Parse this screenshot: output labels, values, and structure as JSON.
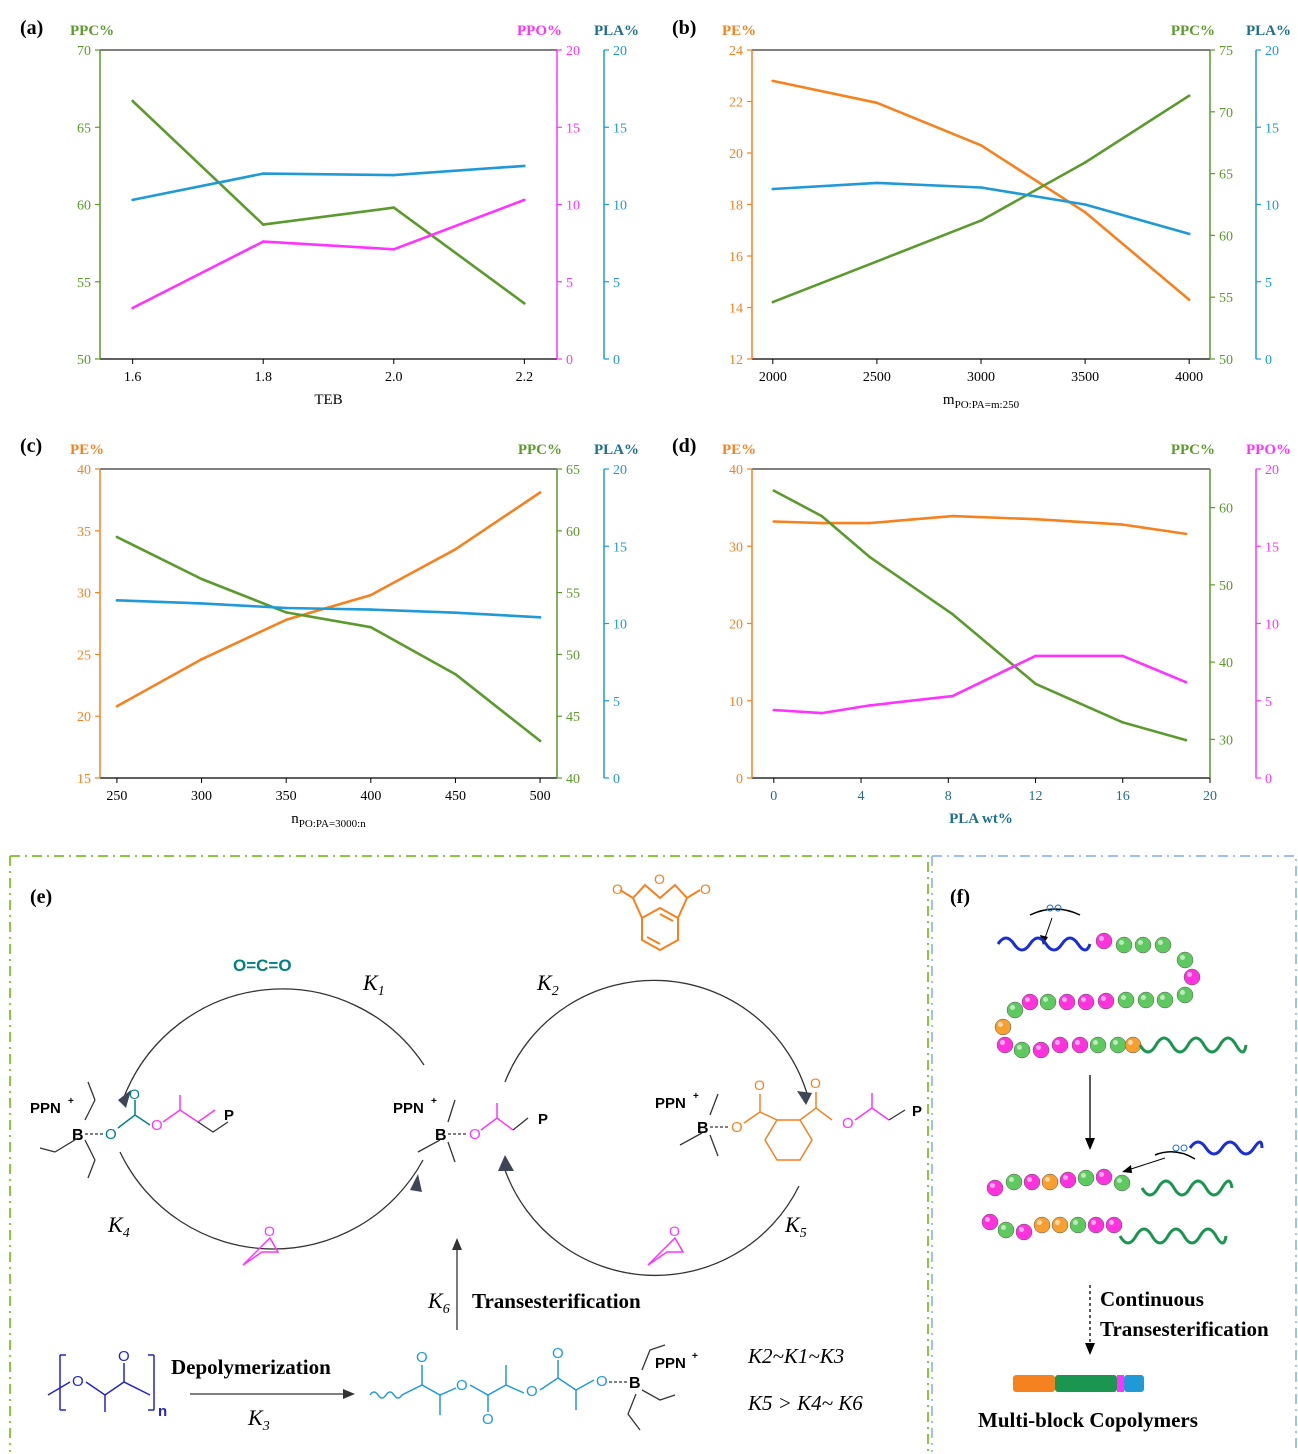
{
  "colors": {
    "ppc": "#5b9a2c",
    "ppo": "#ff33ff",
    "pla": "#1f9ad6",
    "pe": "#f5821f",
    "pla_label": "#1f6f8b",
    "co2": "#008080",
    "dashed_green": "#8dc63f",
    "dashed_blue": "#9dc3e6"
  },
  "chart_data": [
    {
      "id": "a",
      "panel_label": "(a)",
      "type": "line",
      "xlabel": "TEB",
      "x": [
        1.6,
        1.8,
        2.0,
        2.2
      ],
      "xlim": [
        1.55,
        2.25
      ],
      "xticks": [
        1.6,
        1.8,
        2.0,
        2.2
      ],
      "xticklabels": [
        "1.6",
        "1.8",
        "2.0",
        "2.2"
      ],
      "axes": [
        {
          "key": "ppc",
          "label": "PPC%",
          "side": "left",
          "lim": [
            50,
            70
          ],
          "ticks": [
            50,
            55,
            60,
            65,
            70
          ],
          "color": "#5b9a2c"
        },
        {
          "key": "ppo",
          "label": "PPO%",
          "side": "right1",
          "lim": [
            0,
            20
          ],
          "ticks": [
            0,
            5,
            10,
            15,
            20
          ],
          "color": "#ff33ff"
        },
        {
          "key": "pla",
          "label": "PLA%",
          "side": "right2",
          "lim": [
            0,
            20
          ],
          "ticks": [
            0,
            5,
            10,
            15,
            20
          ],
          "color": "#1f9ad6"
        }
      ],
      "series": [
        {
          "axis": "ppc",
          "values": [
            66.7,
            58.7,
            59.8,
            53.6
          ],
          "color": "#5b9a2c"
        },
        {
          "axis": "ppo",
          "values": [
            3.3,
            7.6,
            7.1,
            10.3
          ],
          "color": "#ff33ff"
        },
        {
          "axis": "pla",
          "values": [
            10.3,
            12.0,
            11.9,
            12.5
          ],
          "color": "#1f9ad6"
        }
      ]
    },
    {
      "id": "b",
      "panel_label": "(b)",
      "type": "line",
      "xlabel": "m",
      "xlabel_sub": "PO:PA=m:250",
      "x": [
        2000,
        2500,
        3000,
        3500,
        4000
      ],
      "xlim": [
        1900,
        4100
      ],
      "xticks": [
        2000,
        2500,
        3000,
        3500,
        4000
      ],
      "xticklabels": [
        "2000",
        "2500",
        "3000",
        "3500",
        "4000"
      ],
      "axes": [
        {
          "key": "pe",
          "label": "PE%",
          "side": "left",
          "lim": [
            12,
            24
          ],
          "ticks": [
            12,
            14,
            16,
            18,
            20,
            22,
            24
          ],
          "color": "#f5821f"
        },
        {
          "key": "ppc",
          "label": "PPC%",
          "side": "right1",
          "lim": [
            50,
            75
          ],
          "ticks": [
            50,
            55,
            60,
            65,
            70,
            75
          ],
          "color": "#5b9a2c"
        },
        {
          "key": "pla",
          "label": "PLA%",
          "side": "right2",
          "lim": [
            0,
            20
          ],
          "ticks": [
            0,
            5,
            10,
            15,
            20
          ],
          "color": "#1f9ad6"
        }
      ],
      "series": [
        {
          "axis": "pe",
          "values": [
            22.8,
            21.95,
            20.3,
            17.7,
            14.3
          ],
          "color": "#f5821f"
        },
        {
          "axis": "ppc",
          "values": [
            54.6,
            57.9,
            61.2,
            65.9,
            71.3
          ],
          "color": "#5b9a2c"
        },
        {
          "axis": "pla",
          "values": [
            11.0,
            11.4,
            11.1,
            10.0,
            8.1
          ],
          "color": "#1f9ad6"
        }
      ]
    },
    {
      "id": "c",
      "panel_label": "(c)",
      "type": "line",
      "xlabel": "n",
      "xlabel_sub": "PO:PA=3000:n",
      "x": [
        250,
        300,
        350,
        400,
        450,
        500
      ],
      "xlim": [
        240,
        510
      ],
      "xticks": [
        250,
        300,
        350,
        400,
        450,
        500
      ],
      "xticklabels": [
        "250",
        "300",
        "350",
        "400",
        "450",
        "500"
      ],
      "axes": [
        {
          "key": "pe",
          "label": "PE%",
          "side": "left",
          "lim": [
            15,
            40
          ],
          "ticks": [
            15,
            20,
            25,
            30,
            35,
            40
          ],
          "color": "#f5821f"
        },
        {
          "key": "ppc",
          "label": "PPC%",
          "side": "right1",
          "lim": [
            40,
            65
          ],
          "ticks": [
            40,
            45,
            50,
            55,
            60,
            65
          ],
          "color": "#5b9a2c"
        },
        {
          "key": "pla",
          "label": "PLA%",
          "side": "right2",
          "lim": [
            0,
            20
          ],
          "ticks": [
            0,
            5,
            10,
            15,
            20
          ],
          "color": "#1f9ad6"
        }
      ],
      "series": [
        {
          "axis": "pe",
          "values": [
            20.8,
            24.6,
            27.8,
            29.8,
            33.5,
            38.1
          ],
          "color": "#f5821f"
        },
        {
          "axis": "ppc",
          "values": [
            59.5,
            56.1,
            53.4,
            52.2,
            48.4,
            43.0
          ],
          "color": "#5b9a2c"
        },
        {
          "axis": "pla",
          "values": [
            11.5,
            11.3,
            11.0,
            10.9,
            10.7,
            10.4
          ],
          "color": "#1f9ad6"
        }
      ]
    },
    {
      "id": "d",
      "panel_label": "(d)",
      "type": "line",
      "xlabel": "PLA wt%",
      "x": [
        0,
        2.2,
        4.4,
        8.2,
        12.0,
        16.0,
        18.9
      ],
      "xlim": [
        -1,
        20
      ],
      "xticks": [
        0,
        4,
        8,
        12,
        16,
        20
      ],
      "xticklabels": [
        "0",
        "4",
        "8",
        "12",
        "16",
        "20"
      ],
      "axes": [
        {
          "key": "pe",
          "label": "PE%",
          "side": "left",
          "lim": [
            0,
            40
          ],
          "ticks": [
            0,
            10,
            20,
            30,
            40
          ],
          "color": "#f5821f"
        },
        {
          "key": "ppc",
          "label": "PPC%",
          "side": "right1",
          "lim": [
            25,
            65
          ],
          "ticks": [
            30,
            40,
            50,
            60
          ],
          "color": "#5b9a2c"
        },
        {
          "key": "ppo",
          "label": "PPO%",
          "side": "right2",
          "lim": [
            0,
            20
          ],
          "ticks": [
            0,
            5,
            10,
            15,
            20
          ],
          "color": "#ff33ff"
        }
      ],
      "series": [
        {
          "axis": "pe",
          "values": [
            33.2,
            33.0,
            33.0,
            33.9,
            33.5,
            32.8,
            31.6
          ],
          "color": "#f5821f"
        },
        {
          "axis": "ppc",
          "values": [
            62.2,
            58.9,
            53.6,
            46.2,
            37.2,
            32.2,
            29.9
          ],
          "color": "#5b9a2c"
        },
        {
          "axis": "ppo",
          "values": [
            4.4,
            4.2,
            4.7,
            5.3,
            7.9,
            7.9,
            6.2
          ],
          "color": "#ff33ff"
        }
      ]
    }
  ],
  "scheme": {
    "panel_e_label": "(e)",
    "panel_f_label": "(f)",
    "co2": "O=C=O",
    "k1": "K",
    "k1_sub": "1",
    "k2": "K",
    "k2_sub": "2",
    "k4": "K",
    "k4_sub": "4",
    "k5": "K",
    "k5_sub": "5",
    "k6": "K",
    "k6_sub": "6",
    "k3": "K",
    "k3_sub": "3",
    "ppn": "PPN",
    "plus": "+",
    "boron": "B",
    "oxygen": "O",
    "p_label": "P",
    "n_label": "n",
    "transesterification": "Transesterification",
    "depolymerization": "Depolymerization",
    "rel1": "K2~K1~K3",
    "rel2": "K5 > K4~ K6",
    "continuous_1": "Continuous",
    "continuous_2": "Transesterification",
    "multi_block": "Multi-block Copolymers"
  }
}
